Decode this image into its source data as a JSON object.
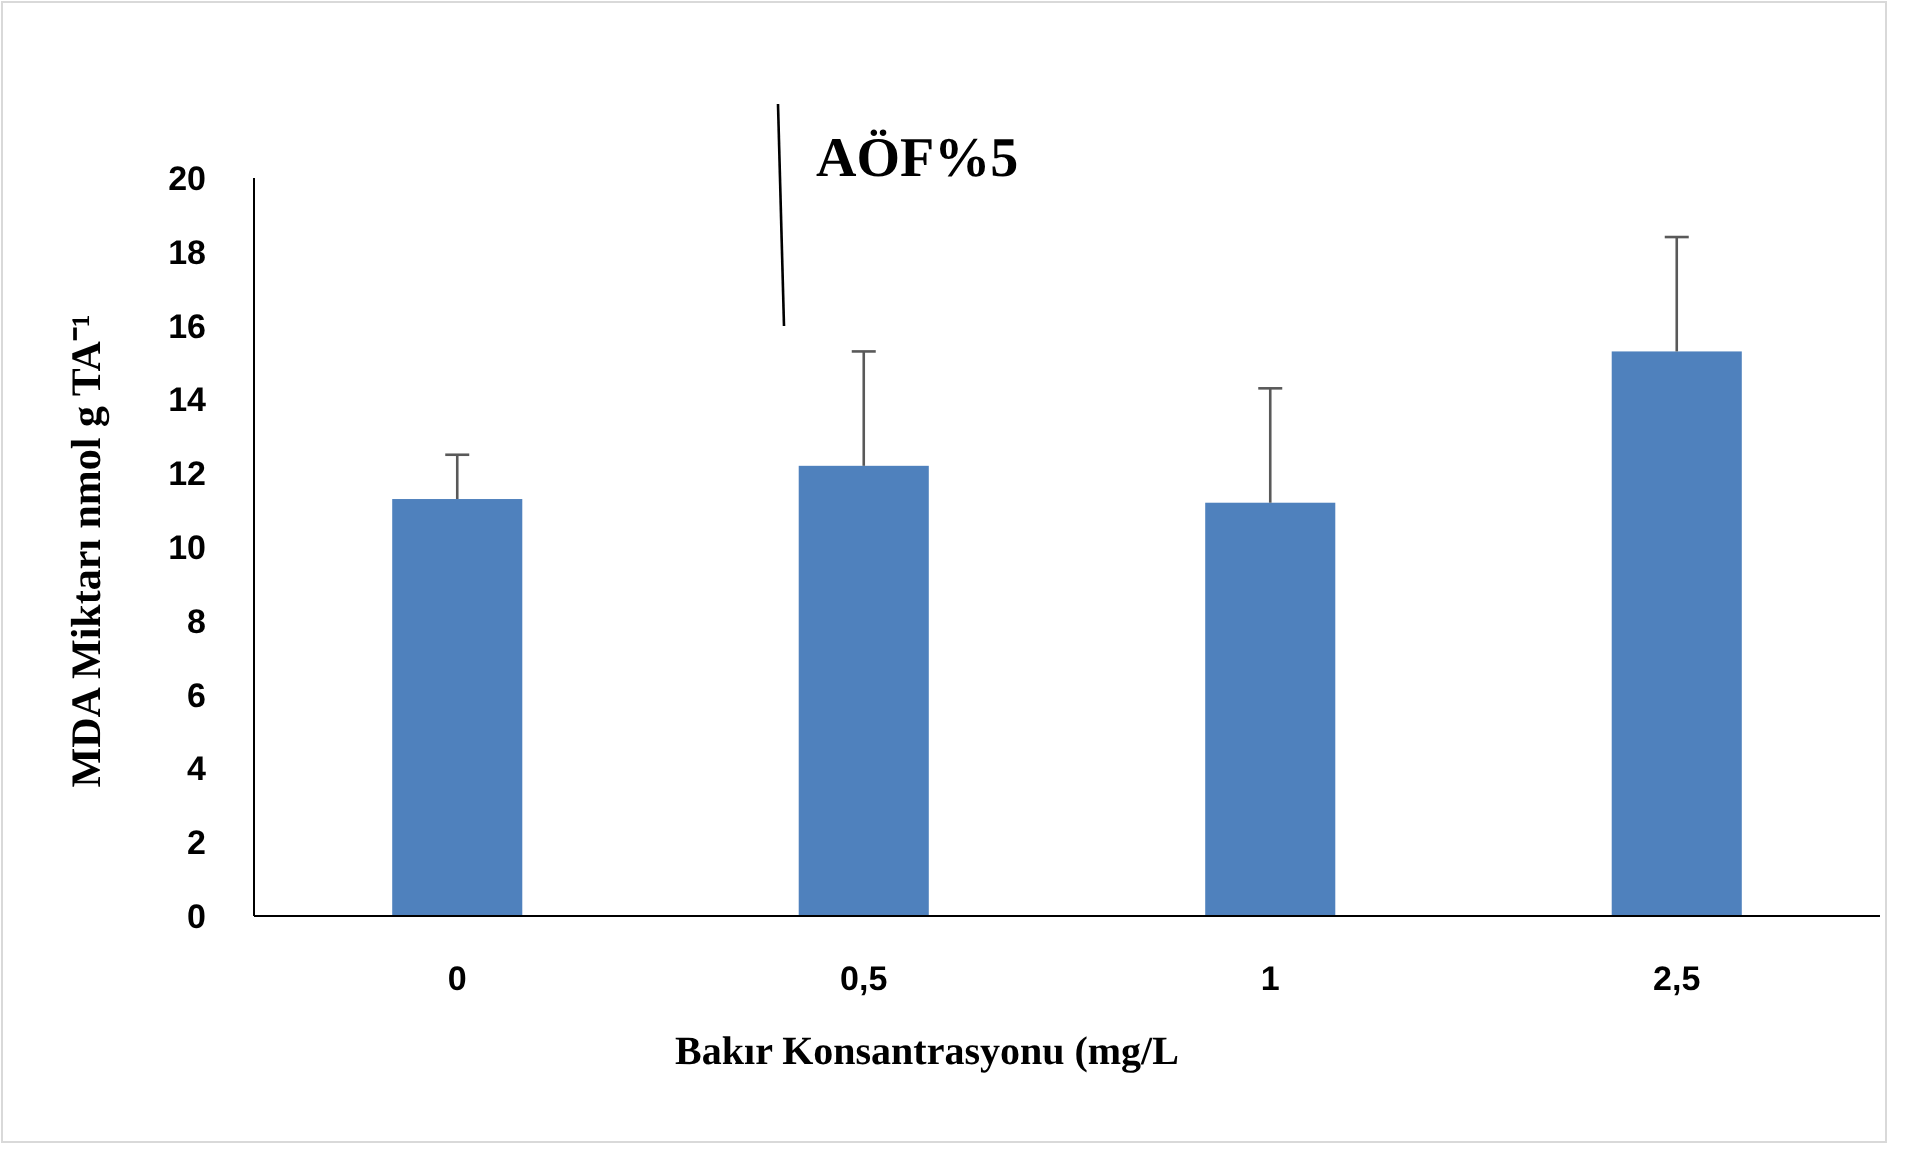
{
  "chart_data": {
    "type": "bar",
    "title": "AÖF%5",
    "xlabel": "Bakır Konsantrasyonu (mg/L",
    "ylabel": "MDA Miktarı nmol g TA⁻¹",
    "categories": [
      "0",
      "0,5",
      "1",
      "2,5"
    ],
    "values": [
      11.3,
      12.2,
      11.2,
      15.3
    ],
    "errors": [
      [
        11.3,
        12.5
      ],
      [
        12.2,
        15.3
      ],
      [
        11.2,
        14.3
      ],
      [
        15.3,
        18.4
      ]
    ],
    "color": "#4f81bd",
    "ylim": [
      0,
      20
    ],
    "yticks": [
      0,
      2,
      4,
      6,
      8,
      10,
      12,
      14,
      16,
      18,
      20
    ],
    "grid": false
  }
}
